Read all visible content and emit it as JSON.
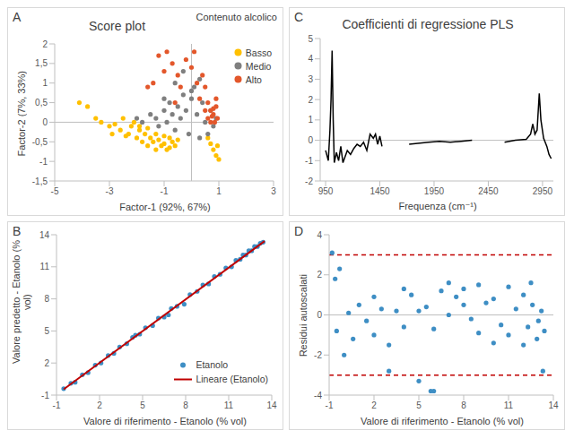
{
  "chart_data": [
    {
      "panel": "A",
      "type": "scatter",
      "title": "Score plot",
      "x_label": "Factor-1 (92%, 67%)",
      "y_label": "Factor-2 (7%, 33%)",
      "legend_title": "Contenuto alcolico",
      "legend": "upper right",
      "grid": false,
      "xlim": [
        -5,
        3
      ],
      "xticks": [
        -5,
        -3,
        -1,
        1,
        3
      ],
      "ylim": [
        -1.5,
        2
      ],
      "yticks": [
        {
          "value": -1.5,
          "label": "-1,5"
        },
        -1,
        {
          "value": -0.5,
          "label": "-0,5"
        },
        0,
        {
          "value": 0.5,
          "label": "0,5"
        },
        1,
        {
          "value": 1.5,
          "label": "1,5"
        },
        2
      ],
      "reference_lines": [
        {
          "x": 0,
          "color": "#BFBFBF",
          "line_style": "solid"
        },
        {
          "y": 0,
          "color": "#BFBFBF",
          "line_style": "solid"
        }
      ],
      "series": [
        {
          "name": "Basso",
          "color": "#FFC000",
          "marker": "circle",
          "x": [
            -4.1,
            -3.8,
            -3.3,
            -3.0,
            -2.8,
            -2.6,
            -2.5,
            -2.3,
            -2.2,
            -2.0,
            -1.9,
            -1.8,
            -1.7,
            -1.6,
            -1.5,
            -1.4,
            -1.3,
            -1.2,
            -1.1,
            -1.0,
            -0.9,
            -0.8,
            -0.7,
            -0.6,
            -0.5,
            -2.4,
            -2.1,
            -1.9,
            -1.6,
            -1.3,
            -1.0,
            -0.8,
            0.6,
            0.7,
            0.8,
            0.9,
            0.95,
            1.0,
            -3.5,
            -2.9
          ],
          "values": [
            0.5,
            0.4,
            0.0,
            -0.1,
            -0.05,
            -0.2,
            0.1,
            -0.3,
            -0.1,
            -0.4,
            -0.2,
            -0.5,
            -0.3,
            -0.6,
            -0.4,
            -0.5,
            -0.7,
            -0.45,
            -0.6,
            -0.55,
            -0.7,
            -0.65,
            -0.5,
            -0.6,
            -0.45,
            -0.35,
            0.0,
            -0.1,
            -0.15,
            -0.3,
            -0.35,
            -0.4,
            -0.4,
            -0.55,
            -0.7,
            -0.85,
            -0.6,
            -0.95,
            0.1,
            -0.3
          ]
        },
        {
          "name": "Medio",
          "color": "#7F7F7F",
          "marker": "circle",
          "x": [
            -2.0,
            -1.8,
            -1.5,
            -1.3,
            -1.2,
            -1.0,
            -0.9,
            -0.8,
            -0.7,
            -0.6,
            -0.5,
            -0.4,
            -0.3,
            -0.2,
            -0.1,
            0.0,
            0.1,
            0.2,
            0.3,
            0.4,
            0.5,
            0.6,
            0.7,
            0.8,
            0.9,
            -0.6,
            -0.3,
            0.0,
            0.3,
            -1.0
          ],
          "values": [
            0.1,
            0.0,
            0.2,
            0.1,
            -0.1,
            0.3,
            0.0,
            0.5,
            0.2,
            -0.2,
            0.4,
            0.1,
            0.7,
            0.3,
            -0.3,
            0.6,
            0.9,
            0.2,
            1.1,
            0.5,
            0.0,
            -0.3,
            0.3,
            -0.1,
            0.1,
            1.0,
            1.3,
            0.8,
            -0.4,
            0.6
          ]
        },
        {
          "name": "Alto",
          "color": "#E3572B",
          "marker": "circle",
          "x": [
            -1.6,
            -1.2,
            -0.9,
            -0.7,
            -0.5,
            -0.2,
            0.0,
            0.2,
            0.4,
            0.5,
            0.6,
            0.7,
            0.8,
            0.9,
            0.95,
            0.6,
            0.7,
            0.8,
            0.9,
            0.5,
            -0.4,
            -1.0,
            -1.4,
            0.3,
            0.1,
            -0.6,
            0.85,
            0.75
          ],
          "values": [
            0.9,
            1.7,
            1.8,
            1.5,
            1.2,
            1.6,
            1.4,
            1.0,
            1.2,
            0.9,
            0.5,
            0.3,
            0.2,
            0.4,
            0.1,
            0.1,
            0.0,
            0.35,
            0.6,
            0.3,
            0.9,
            1.3,
            1.0,
            0.6,
            1.8,
            0.5,
            0.0,
            0.15
          ]
        }
      ]
    },
    {
      "panel": "B",
      "type": "scatter",
      "x_label": "Valore di riferimento - Etanolo (% vol)",
      "y_label": "Valore predetto - Etanolo (% vol)",
      "legend": "lower right",
      "grid": false,
      "xlim": [
        -1,
        14
      ],
      "xticks": [
        -1,
        2,
        5,
        8,
        11,
        14
      ],
      "ylim": [
        -1,
        14
      ],
      "yticks": [
        -1,
        2,
        5,
        8,
        11,
        14
      ],
      "series": [
        {
          "name": "Etanolo",
          "type": "scatter",
          "color": "#3E8EC4",
          "marker": "circle",
          "x": [
            -0.5,
            0.0,
            0.3,
            0.8,
            1.2,
            1.7,
            2.1,
            2.6,
            3.0,
            3.4,
            3.9,
            4.3,
            4.8,
            5.2,
            5.7,
            6.1,
            6.5,
            7.0,
            7.4,
            7.9,
            8.3,
            8.8,
            9.2,
            9.6,
            10.0,
            10.4,
            10.8,
            11.2,
            11.5,
            11.8,
            12.0,
            12.2,
            12.4,
            12.6,
            12.8,
            13.0,
            13.2,
            13.4,
            6.8,
            4.5
          ],
          "values": [
            -0.4,
            0.1,
            0.2,
            0.9,
            1.1,
            1.8,
            2.0,
            2.7,
            2.9,
            3.5,
            3.8,
            4.4,
            4.7,
            5.3,
            5.5,
            6.2,
            6.3,
            7.1,
            7.3,
            7.5,
            8.4,
            8.7,
            9.3,
            9.4,
            10.1,
            10.3,
            10.9,
            11.0,
            11.6,
            11.7,
            12.1,
            12.1,
            12.5,
            12.5,
            12.9,
            12.9,
            13.2,
            13.3,
            6.5,
            4.6
          ]
        },
        {
          "name": "Lineare (Etanolo)",
          "type": "line",
          "color": "#C00000",
          "line_style": "solid",
          "x": [
            -0.5,
            13.5
          ],
          "values": [
            -0.45,
            13.4
          ]
        }
      ]
    },
    {
      "panel": "C",
      "type": "line",
      "title": "Coefficienti di regressione PLS",
      "x_label": "Frequenza (cm⁻¹)",
      "grid": false,
      "xlim": [
        900,
        3050
      ],
      "xticks": [
        950,
        1450,
        1950,
        2450,
        2950
      ],
      "ylim": [
        -2,
        5
      ],
      "yticks": [
        -2,
        -1,
        0,
        1,
        2,
        3,
        4,
        5
      ],
      "reference_lines": [
        {
          "y": 0,
          "color": "#BFBFBF",
          "line_style": "solid"
        }
      ],
      "series": [
        {
          "name": "PLS",
          "color": "#000000",
          "line_style": "solid",
          "x": [
            950,
            975,
            990,
            1000,
            1010,
            1020,
            1030,
            1050,
            1070,
            1090,
            1110,
            1130,
            1150,
            1180,
            1210,
            1240,
            1270,
            1300,
            1330,
            1360,
            1390,
            1410,
            1430,
            1450,
            1470,
            1600,
            1720,
            1800,
            1900,
            2000,
            2100,
            2200,
            2300,
            2400,
            2600,
            2700,
            2800,
            2840,
            2860,
            2880,
            2900,
            2920,
            2935,
            2960,
            2990,
            3010,
            3030
          ],
          "values": [
            -0.5,
            -1.0,
            0.5,
            2.0,
            4.4,
            1.0,
            -1.1,
            -0.6,
            -1.0,
            -0.3,
            -1.1,
            -0.8,
            -0.5,
            -0.7,
            -0.4,
            -0.2,
            -0.3,
            -0.1,
            -0.5,
            0.3,
            0.1,
            0.3,
            -0.2,
            0.2,
            -0.3,
            null,
            -0.2,
            -0.15,
            -0.1,
            -0.05,
            -0.1,
            -0.05,
            0.0,
            null,
            -0.1,
            0.0,
            0.05,
            0.3,
            0.8,
            0.3,
            0.5,
            2.3,
            1.0,
            0.1,
            -0.3,
            -0.7,
            -0.9
          ]
        }
      ]
    },
    {
      "panel": "D",
      "type": "scatter",
      "x_label": "Valore di riferimento - Etanolo (% vol)",
      "y_label": "Residui autoscalati",
      "grid": false,
      "xlim": [
        -1,
        14
      ],
      "xticks": [
        -1,
        2,
        5,
        8,
        11,
        14
      ],
      "ylim": [
        -4,
        4
      ],
      "yticks": [
        -4,
        -2,
        0,
        2,
        4
      ],
      "reference_lines": [
        {
          "y": 0,
          "color": "#BFBFBF",
          "line_style": "solid"
        },
        {
          "y": 3,
          "color": "#C00000",
          "line_style": "dashed"
        },
        {
          "y": -3,
          "color": "#C00000",
          "line_style": "dashed"
        }
      ],
      "series": [
        {
          "name": "Residui",
          "color": "#3E8EC4",
          "marker": "circle",
          "x": [
            -0.8,
            -0.6,
            -0.5,
            -0.3,
            0.0,
            0.3,
            0.6,
            1.0,
            1.5,
            2.0,
            2.5,
            3.0,
            3.5,
            4.0,
            4.5,
            5.0,
            5.5,
            6.0,
            6.5,
            7.0,
            7.5,
            8.0,
            8.5,
            9.0,
            9.5,
            10.0,
            10.5,
            11.0,
            11.5,
            12.0,
            12.3,
            12.6,
            12.9,
            13.2,
            13.4,
            12.0,
            12.5,
            13.0,
            11.0,
            10.0,
            9.0,
            8.0,
            7.0,
            6.0,
            5.0,
            4.0,
            3.0,
            2.0,
            5.8,
            13.3
          ],
          "values": [
            3.1,
            1.8,
            -0.8,
            2.3,
            -2.0,
            0.1,
            -1.2,
            0.5,
            -0.3,
            -1.0,
            0.3,
            -2.8,
            0.2,
            -0.6,
            1.0,
            -3.3,
            0.4,
            -3.8,
            1.2,
            0.0,
            0.9,
            1.3,
            -0.2,
            1.5,
            0.6,
            0.8,
            -0.5,
            1.4,
            0.3,
            1.0,
            -0.6,
            0.5,
            -1.2,
            0.2,
            -0.8,
            -1.5,
            1.6,
            -0.3,
            -1.0,
            -1.4,
            -0.9,
            0.5,
            1.6,
            -0.7,
            0.2,
            1.3,
            -1.5,
            0.9,
            -3.8,
            -2.8
          ]
        }
      ]
    }
  ]
}
